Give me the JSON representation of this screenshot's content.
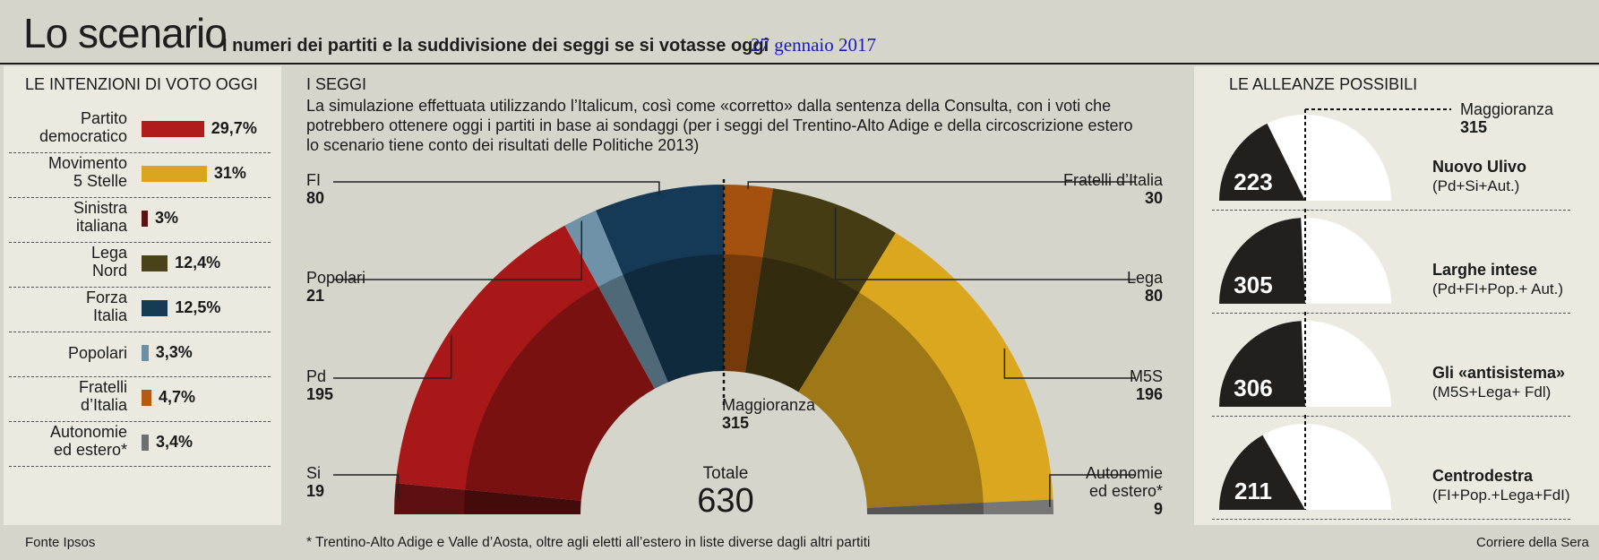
{
  "header": {
    "title": "Lo scenario",
    "subtitle": "I numeri dei partiti e la suddivisione dei seggi se si votasse oggi",
    "date": "27 gennaio 2017"
  },
  "voting_intentions": {
    "title": "LE INTENZIONI DI VOTO OGGI",
    "source": "Fonte Ipsos"
  },
  "seats": {
    "title": "I SEGGI",
    "description_lines": [
      "La simulazione effettuata utilizzando l’Italicum, così come «corretto» dalla sentenza della Consulta, con i voti che",
      "potrebbero ottenere oggi i partiti in base ai sondaggi (per i seggi del Trentino-Alto Adige e della circoscrizione estero",
      "lo scenario tiene conto dei risultati delle Politiche 2013)"
    ],
    "majority_label": "Maggioranza",
    "majority_value": "315",
    "total_label": "Totale",
    "total_value": "630",
    "footnote": "* Trentino-Alto Adige e Valle d’Aosta, oltre agli eletti all’estero in liste diverse dagli altri partiti"
  },
  "alliances": {
    "title": "LE ALLEANZE POSSIBILI",
    "majority_label": "Maggioranza",
    "majority_value": "315",
    "source": "Corriere della Sera",
    "items": [
      {
        "seats": 223,
        "name": "Nuovo Ulivo",
        "parties": "(Pd+Si+Aut.)"
      },
      {
        "seats": 305,
        "name": "Larghe intese",
        "parties": "(Pd+FI+Pop.+ Aut.)"
      },
      {
        "seats": 306,
        "name": "Gli «antisistema»",
        "parties": "(M5S+Lega+ Fdl)"
      },
      {
        "seats": 211,
        "name": "Centrodestra",
        "parties": "(FI+Pop.+Lega+FdI)"
      }
    ]
  },
  "chart_data": [
    {
      "type": "bar",
      "orientation": "horizontal",
      "title": "LE INTENZIONI DI VOTO OGGI",
      "unit": "%",
      "categories": [
        [
          "Partito",
          "democratico"
        ],
        [
          "Movimento",
          "5 Stelle"
        ],
        [
          "Sinistra",
          "italiana"
        ],
        [
          "Lega",
          "Nord"
        ],
        [
          "Forza",
          "Italia"
        ],
        [
          "Popolari"
        ],
        [
          "Fratelli",
          "d’Italia"
        ],
        [
          "Autonomie",
          "ed estero*"
        ]
      ],
      "values": [
        29.7,
        31,
        3,
        12.4,
        12.5,
        3.3,
        4.7,
        3.4
      ],
      "value_labels": [
        "29,7%",
        "31%",
        "3%",
        "12,4%",
        "12,5%",
        "3,3%",
        "4,7%",
        "3,4%"
      ],
      "colors": [
        "#b01c1c",
        "#d9a51f",
        "#5a1212",
        "#4a4218",
        "#163a52",
        "#6a90a6",
        "#b55a10",
        "#6c6e70"
      ]
    },
    {
      "type": "pie",
      "subtype": "parliament-hemicycle",
      "title": "I SEGGI",
      "total": 630,
      "majority": 315,
      "slices": [
        {
          "label": "Si",
          "value": 19,
          "color": "#5e1010"
        },
        {
          "label": "Pd",
          "value": 195,
          "color": "#a81818"
        },
        {
          "label": "Popolari",
          "value": 21,
          "color": "#6f92a8"
        },
        {
          "label": "FI",
          "value": 80,
          "color": "#163a55"
        },
        {
          "label": "Fratelli d’Italia",
          "value": 30,
          "color": "#a4500e"
        },
        {
          "label": "Lega",
          "value": 80,
          "color": "#463c14"
        },
        {
          "label": "M5S",
          "value": 196,
          "color": "#dba71f"
        },
        {
          "label": "Autonomie",
          "label2": "ed estero*",
          "value": 9,
          "color": "#767776"
        }
      ]
    },
    {
      "type": "pie",
      "subtype": "half-donut",
      "title": "LE ALLEANZE POSSIBILI",
      "total": 630,
      "majority": 315,
      "values": [
        223,
        305,
        306,
        211
      ]
    }
  ],
  "colors": {
    "background": "#d6d5cb",
    "panel": "#eceae0",
    "alliance_fill": "#231f1c"
  }
}
